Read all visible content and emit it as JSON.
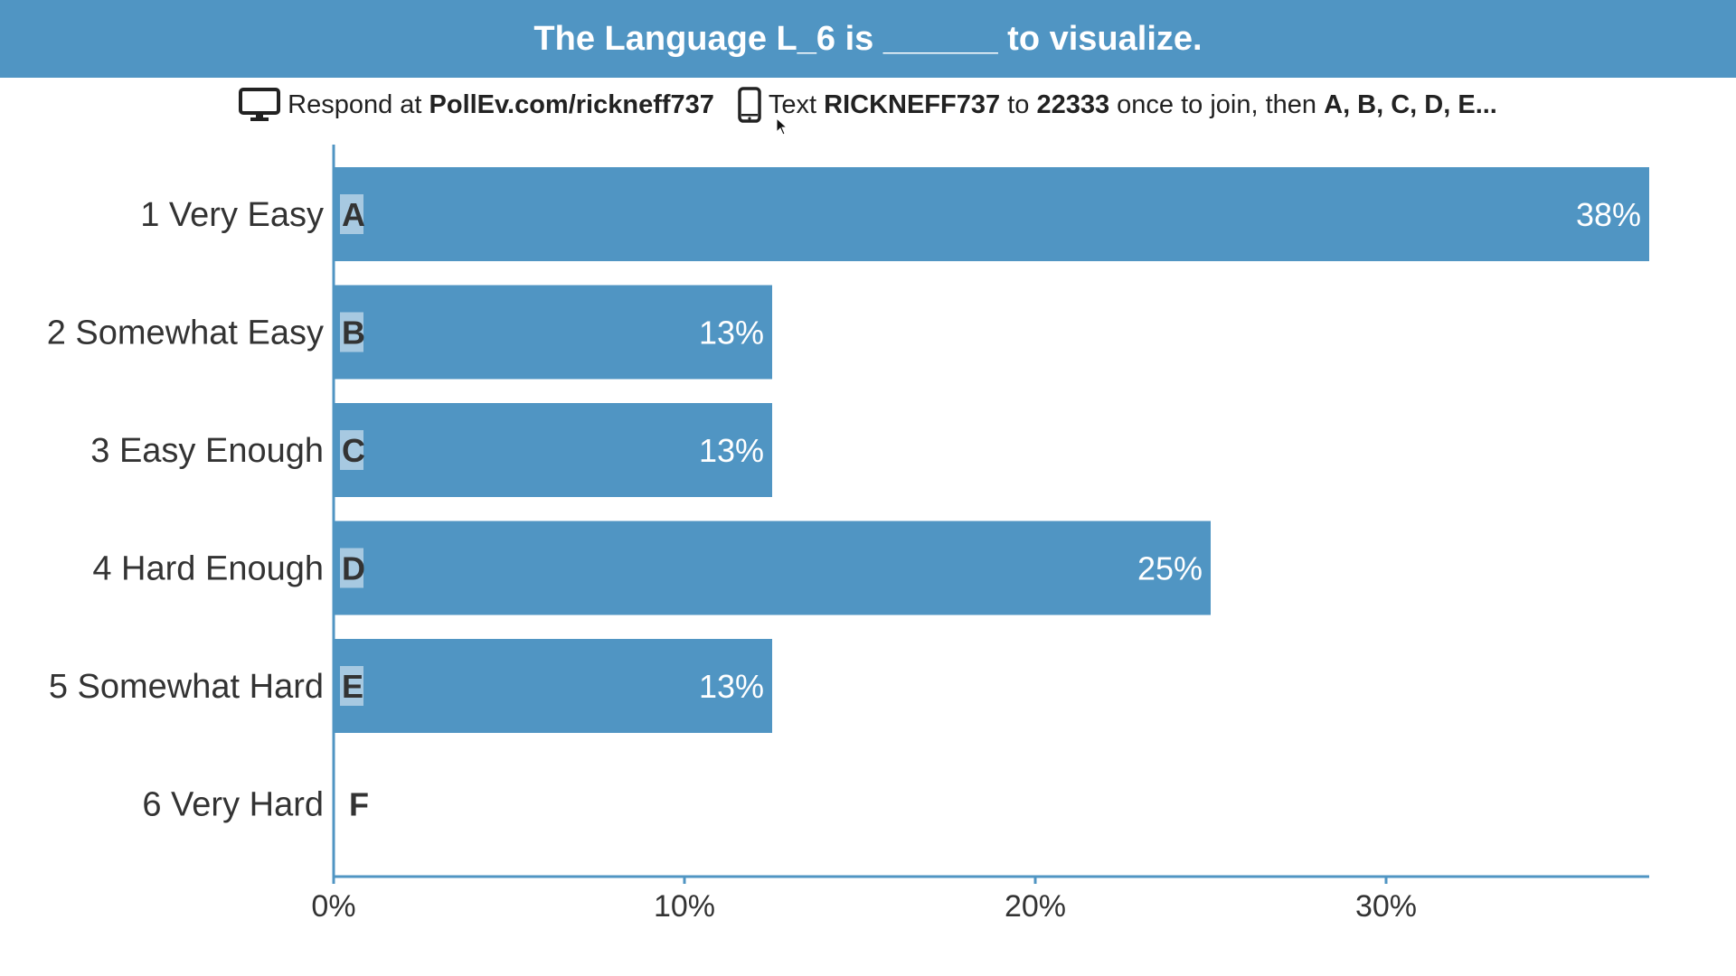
{
  "header": {
    "title": "The Language L_6 is ______ to visualize."
  },
  "instructions": {
    "respond_prefix": "Respond at",
    "respond_url": "PollEv.com/rickneff737",
    "text_prefix": "Text",
    "text_code": "RICKNEFF737",
    "text_to": "to",
    "text_number": "22333",
    "text_join": "once to join, then",
    "text_options": "A, B, C, D, E..."
  },
  "icons": {
    "desktop": "monitor-icon",
    "mobile": "phone-icon",
    "pointer": "mouse-cursor-icon"
  },
  "colors": {
    "accent": "#5095c3",
    "letter_box": "#a7c9e1",
    "text": "#333333"
  },
  "chart_data": {
    "type": "bar",
    "orientation": "horizontal",
    "categories": [
      "1 Very Easy",
      "2 Somewhat Easy",
      "3 Easy Enough",
      "4 Hard Enough",
      "5 Somewhat Hard",
      "6 Very Hard"
    ],
    "letters": [
      "A",
      "B",
      "C",
      "D",
      "E",
      "F"
    ],
    "values": [
      37.5,
      12.5,
      12.5,
      25,
      12.5,
      0
    ],
    "value_labels": [
      "38%",
      "13%",
      "13%",
      "25%",
      "13%",
      ""
    ],
    "xlim": [
      0,
      37.5
    ],
    "xticks": [
      0,
      10,
      20,
      30
    ],
    "xtick_labels": [
      "0%",
      "10%",
      "20%",
      "30%"
    ],
    "grid": false,
    "legend": "none"
  }
}
